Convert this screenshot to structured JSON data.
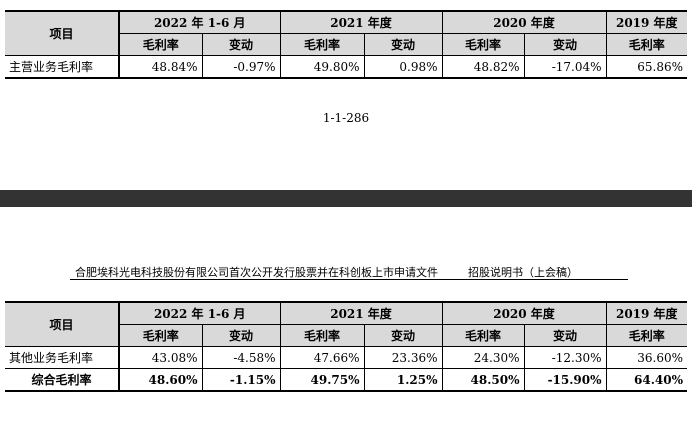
{
  "table_header": {
    "project": "项目",
    "periods": [
      "2022 年 1-6 月",
      "2021 年度",
      "2020 年度",
      "2019 年度"
    ],
    "sub_margin": "毛利率",
    "sub_change": "变动"
  },
  "table_top": {
    "rows": [
      {
        "label": "主营业务毛利率",
        "v2022": "48.84%",
        "c2022": "-0.97%",
        "v2021": "49.80%",
        "c2021": "0.98%",
        "v2020": "48.82%",
        "c2020": "-17.04%",
        "v2019": "65.86%"
      }
    ]
  },
  "page_number": "1-1-286",
  "doc_header": {
    "company_doc": "合肥埃科光电科技股份有限公司首次公开发行股票并在科创板上市申请文件",
    "doc_type": "招股说明书（上会稿）"
  },
  "table_bottom": {
    "rows": [
      {
        "label": "其他业务毛利率",
        "v2022": "43.08%",
        "c2022": "-4.58%",
        "v2021": "47.66%",
        "c2021": "23.36%",
        "v2020": "24.30%",
        "c2020": "-12.30%",
        "v2019": "36.60%"
      },
      {
        "label": "综合毛利率",
        "v2022": "48.60%",
        "c2022": "-1.15%",
        "v2021": "49.75%",
        "c2021": "1.25%",
        "v2020": "48.50%",
        "c2020": "-15.90%",
        "v2019": "64.40%"
      }
    ]
  }
}
